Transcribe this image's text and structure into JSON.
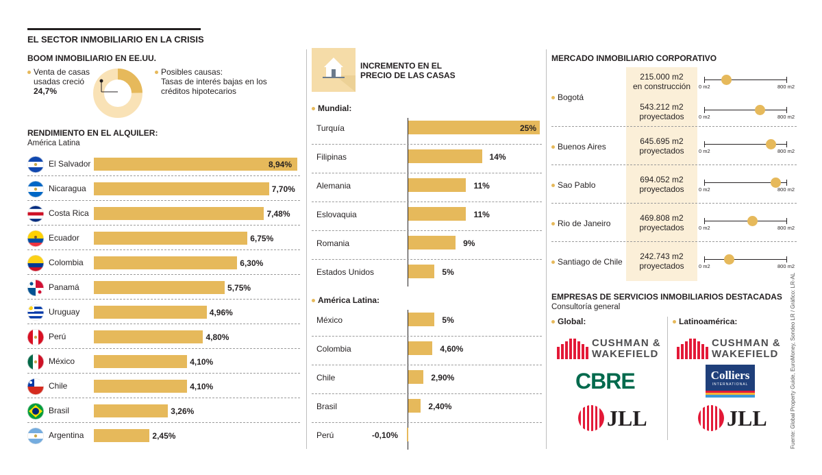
{
  "header": {
    "title": "EL SECTOR INMOBILIARIO EN LA CRISIS"
  },
  "boom": {
    "title": "BOOM INMOBILIARIO EN EE.UU.",
    "left_text_1": "Venta de casas",
    "left_text_2": "usadas creció",
    "left_value": "24,7%",
    "donut_value": 24.7,
    "right_text_1": "Posibles causas:",
    "right_text_2": "Tasas de interés bajas en los",
    "right_text_3": "créditos hipotecarios"
  },
  "rental": {
    "title": "RENDIMIENTO EN EL ALQUILER:",
    "subtitle": "América Latina"
  },
  "prices": {
    "title_1": "INCREMENTO EN EL",
    "title_2": "PRECIO DE LAS CASAS",
    "mundial_label": "Mundial:",
    "latam_label": "América Latina:"
  },
  "corporate": {
    "title": "MERCADO INMOBILIARIO CORPORATIVO",
    "axis_min": "0 m2",
    "axis_max": "800 m2",
    "axis_range": [
      0,
      800
    ],
    "rows": [
      {
        "city": "Bogotá",
        "entries": [
          {
            "line1": "215.000 m2",
            "line2": "en construcción",
            "value": 215
          },
          {
            "line1": "543.212 m2",
            "line2": "proyectados",
            "value": 543.212
          }
        ]
      },
      {
        "city": "Buenos Aires",
        "entries": [
          {
            "line1": "645.695 m2",
            "line2": "proyectados",
            "value": 645.695
          }
        ]
      },
      {
        "city": "Sao Pablo",
        "entries": [
          {
            "line1": "694.052 m2",
            "line2": "proyectados",
            "value": 694.052
          }
        ]
      },
      {
        "city": "Rio de Janeiro",
        "entries": [
          {
            "line1": "469.808 m2",
            "line2": "proyectados",
            "value": 469.808
          }
        ]
      },
      {
        "city": "Santiago de Chile",
        "entries": [
          {
            "line1": "242.743 m2",
            "line2": "proyectados",
            "value": 242.743
          }
        ]
      }
    ]
  },
  "companies": {
    "title": "EMPRESAS DE SERVICIOS INMOBILIARIOS DESTACADAS",
    "subtitle": "Consultoría general",
    "global_label": "Global:",
    "latam_label": "Latinoamérica:",
    "cushman_1": "CUSHMAN &",
    "cushman_2": "WAKEFIELD",
    "cbre": "CBRE",
    "jll": "JLL",
    "colliers": "Colliers",
    "colliers_sub": "INTERNATIONAL"
  },
  "source": "Fuente: Global Property Guide, EuroMoney, Sondeo LR / Gráfico: LR-AL",
  "colors": {
    "bar": "#e6b95b",
    "donut_light": "#f9e2b6",
    "highlight": "#fbefd8",
    "cbre": "#006a4d",
    "jll": "#e31937",
    "cushman": "#e31937",
    "colliers": "#1f3f7a"
  },
  "chart_data": [
    {
      "type": "bar",
      "title": "RENDIMIENTO EN EL ALQUILER: América Latina",
      "categories": [
        "El Salvador",
        "Nicaragua",
        "Costa Rica",
        "Ecuador",
        "Colombia",
        "Panamá",
        "Uruguay",
        "Perú",
        "México",
        "Chile",
        "Brasil",
        "Argentina"
      ],
      "values": [
        8.94,
        7.7,
        7.48,
        6.75,
        6.3,
        5.75,
        4.96,
        4.8,
        4.1,
        4.1,
        3.26,
        2.45
      ],
      "labels": [
        "8,94%",
        "7,70%",
        "7,48%",
        "6,75%",
        "6,30%",
        "5,75%",
        "4,96%",
        "4,80%",
        "4,10%",
        "4,10%",
        "3,26%",
        "2,45%"
      ],
      "xlim": [
        0,
        8.94
      ]
    },
    {
      "type": "bar",
      "title": "INCREMENTO EN EL PRECIO DE LAS CASAS - Mundial",
      "categories": [
        "Turquía",
        "Filipinas",
        "Alemania",
        "Eslovaquia",
        "Romania",
        "Estados Unidos"
      ],
      "values": [
        25,
        14,
        11,
        11,
        9,
        5
      ],
      "labels": [
        "25%",
        "14%",
        "11%",
        "11%",
        "9%",
        "5%"
      ],
      "xlim": [
        0,
        25
      ]
    },
    {
      "type": "bar",
      "title": "INCREMENTO EN EL PRECIO DE LAS CASAS - América Latina",
      "categories": [
        "México",
        "Colombia",
        "Chile",
        "Brasil",
        "Perú"
      ],
      "values": [
        5,
        4.6,
        2.9,
        2.4,
        -0.1
      ],
      "labels": [
        "5%",
        "4,60%",
        "2,90%",
        "2,40%",
        "-0,10%"
      ],
      "xlim": [
        0,
        25
      ]
    }
  ]
}
